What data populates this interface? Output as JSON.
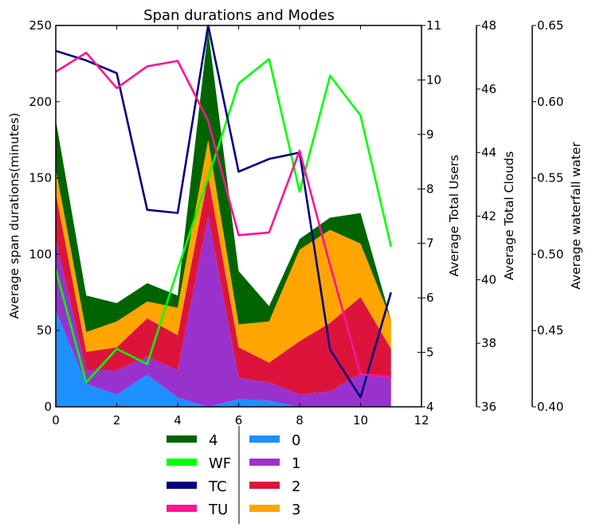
{
  "chart_data": {
    "type": "area",
    "title": "Span durations and Modes",
    "x": [
      0,
      1,
      2,
      3,
      4,
      5,
      6,
      7,
      8,
      9,
      10,
      11
    ],
    "xlim": [
      0,
      12
    ],
    "xticks": [
      "0",
      "2",
      "4",
      "6",
      "8",
      "10",
      "12"
    ],
    "ylabel": "Average span durations(minutes)",
    "ylim": [
      0,
      250
    ],
    "yticks": [
      "0",
      "50",
      "100",
      "150",
      "200",
      "250"
    ],
    "stacked_series": [
      {
        "name": "0",
        "color": "#1e90ff",
        "values": [
          63,
          15,
          8,
          21,
          6,
          0,
          5,
          4,
          0,
          0,
          0,
          0
        ]
      },
      {
        "name": "1",
        "color": "#9932cc",
        "values": [
          47,
          9,
          16,
          12,
          18,
          125,
          14,
          12,
          8,
          10,
          22,
          20
        ]
      },
      {
        "name": "2",
        "color": "#dc143c",
        "values": [
          30,
          12,
          15,
          25,
          23,
          26,
          20,
          13,
          35,
          45,
          50,
          18
        ]
      },
      {
        "name": "3",
        "color": "#ffa500",
        "values": [
          16,
          13,
          17,
          11,
          18,
          24,
          15,
          27,
          60,
          61,
          35,
          19
        ]
      },
      {
        "name": "4",
        "color": "#006400",
        "values": [
          32,
          24,
          12,
          12,
          8,
          72,
          35,
          10,
          7,
          8,
          20,
          0
        ]
      }
    ],
    "lines": [
      {
        "name": "WF",
        "color": "#00ff00",
        "axis": "waterfall",
        "values": [
          0.49,
          0.416,
          0.438,
          0.428,
          0.49,
          0.55,
          0.612,
          0.628,
          0.541,
          0.617,
          0.591,
          0.505
        ]
      },
      {
        "name": "TC",
        "color": "#000080",
        "axis": "clouds",
        "values": [
          47.2,
          46.9,
          46.5,
          42.2,
          42.1,
          48.0,
          43.4,
          43.8,
          44.0,
          37.8,
          36.3,
          39.6
        ]
      },
      {
        "name": "TU",
        "color": "#ff1493",
        "axis": "users",
        "values": [
          10.15,
          10.5,
          9.85,
          10.25,
          10.35,
          9.25,
          7.15,
          7.2,
          8.7,
          6.6,
          4.6,
          4.55
        ]
      }
    ],
    "right_axes": [
      {
        "id": "users",
        "label": "Average Total Users",
        "ylim": [
          4,
          11
        ],
        "ticks": [
          "4",
          "5",
          "6",
          "7",
          "8",
          "9",
          "10",
          "11"
        ]
      },
      {
        "id": "clouds",
        "label": "Average Total Clouds",
        "ylim": [
          36,
          48
        ],
        "ticks": [
          "36",
          "38",
          "40",
          "42",
          "44",
          "46",
          "48"
        ]
      },
      {
        "id": "waterfall",
        "label": "Average waterfall water",
        "ylim": [
          0.4,
          0.65
        ],
        "ticks": [
          "0.40",
          "0.45",
          "0.50",
          "0.55",
          "0.60",
          "0.65"
        ]
      }
    ],
    "legend": {
      "placement": "below",
      "columns": [
        [
          {
            "label": "4",
            "color": "#006400"
          },
          {
            "label": "WF",
            "color": "#00ff00"
          },
          {
            "label": "TC",
            "color": "#000080"
          },
          {
            "label": "TU",
            "color": "#ff1493"
          }
        ],
        [
          {
            "label": "0",
            "color": "#1e90ff"
          },
          {
            "label": "1",
            "color": "#9932cc"
          },
          {
            "label": "2",
            "color": "#dc143c"
          },
          {
            "label": "3",
            "color": "#ffa500"
          }
        ]
      ]
    },
    "grid": false
  }
}
